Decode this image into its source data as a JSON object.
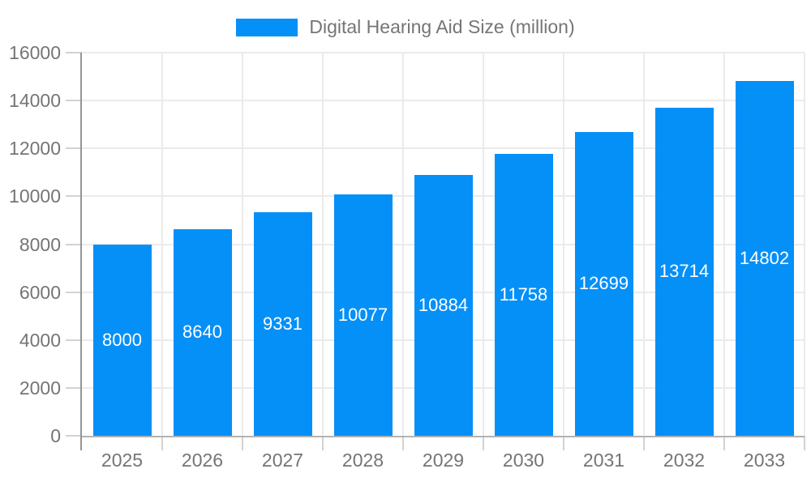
{
  "chart_data": {
    "type": "bar",
    "title": "",
    "legend": "Digital Hearing Aid Size (million)",
    "legend_position": "top",
    "categories": [
      "2025",
      "2026",
      "2027",
      "2028",
      "2029",
      "2030",
      "2031",
      "2032",
      "2033"
    ],
    "series": [
      {
        "name": "Digital Hearing Aid Size (million)",
        "values": [
          8000,
          8640,
          9331,
          10077,
          10884,
          11758,
          12699,
          13714,
          14802
        ]
      }
    ],
    "data_labels": [
      "8000",
      "8640",
      "9331",
      "10077",
      "10884",
      "11758",
      "12699",
      "13714",
      "14802"
    ],
    "xlabel": "",
    "ylabel": "",
    "ylim": [
      0,
      16000
    ],
    "yticks": [
      0,
      2000,
      4000,
      6000,
      8000,
      10000,
      12000,
      14000,
      16000
    ],
    "ytick_labels": [
      "0",
      "2000",
      "4000",
      "6000",
      "8000",
      "10000",
      "12000",
      "14000",
      "16000"
    ],
    "grid": true,
    "colors": {
      "bar": "#0590f8",
      "bar_label_text": "#ffffff",
      "axis_text": "#757575",
      "gridline": "#ebebeb",
      "y_axis_line": "#969696",
      "x_axis_line": "#b3b3b3",
      "tick": "#d2d2d2"
    }
  }
}
